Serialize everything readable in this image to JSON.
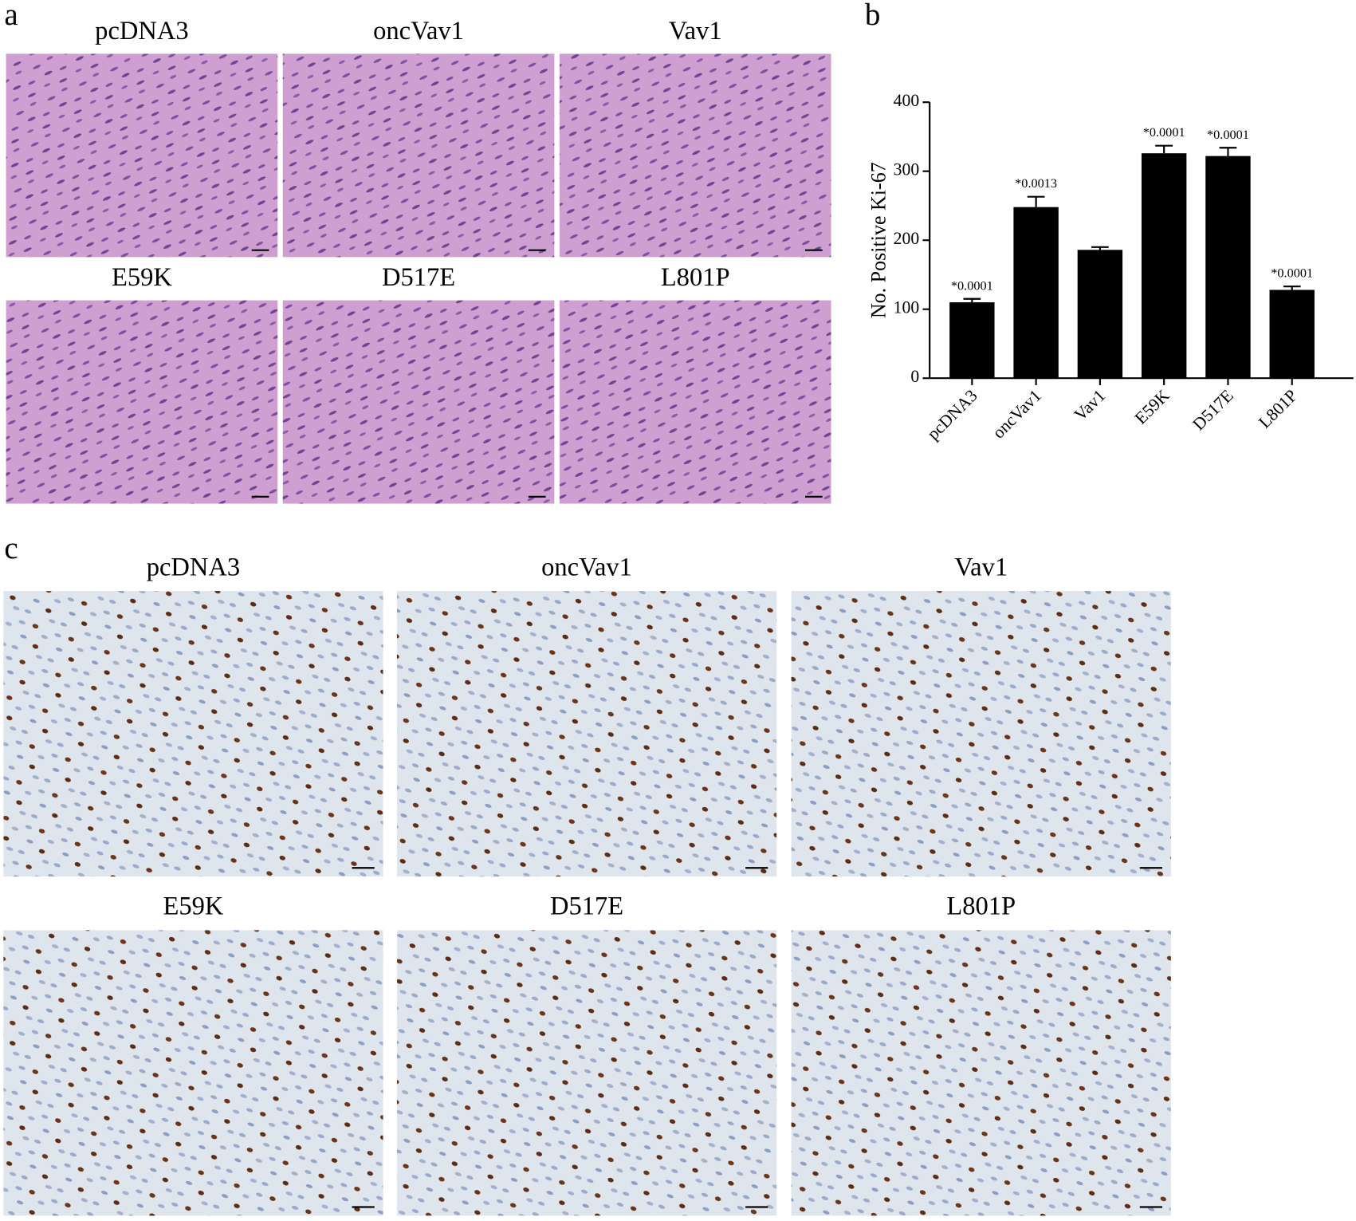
{
  "panel_labels": [
    "a",
    "b",
    "c"
  ],
  "he_images": {
    "labels": [
      "pcDNA3",
      "oncVav1",
      "Vav1",
      "E59K",
      "D517E",
      "L801P"
    ]
  },
  "ihc_images": {
    "labels": [
      "pcDNA3",
      "oncVav1",
      "Vav1",
      "E59K",
      "D517E",
      "L801P"
    ]
  },
  "chart_data": {
    "type": "bar",
    "y_label": "No. Positive Ki-67",
    "categories": [
      "pcDNA3",
      "oncVav1",
      "Vav1",
      "E59K",
      "D517E",
      "L801P"
    ],
    "values": [
      110,
      248,
      186,
      326,
      322,
      128
    ],
    "errors": [
      5,
      15,
      4,
      11,
      12,
      5
    ],
    "annotations": [
      "*0.0001",
      "*0.0013",
      null,
      "*0.0001",
      "*0.0001",
      "*0.0001"
    ],
    "color": "#000000",
    "ylim": [
      0,
      400
    ],
    "yticks": [
      0,
      100,
      200,
      300,
      400
    ]
  }
}
